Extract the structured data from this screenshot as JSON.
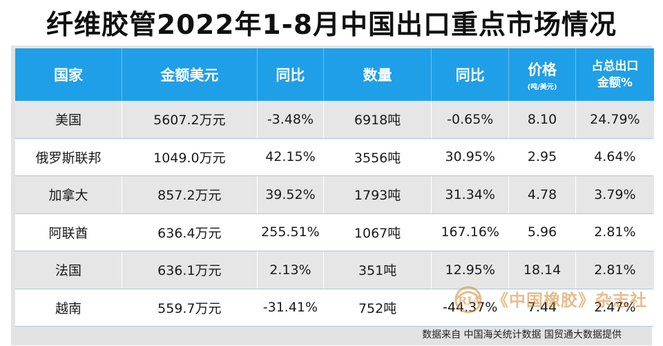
{
  "title": "纤维胶管2022年1-8月中国出口重点市场情况",
  "header": {
    "country": "国家",
    "amount": "金额美元",
    "yoy1": "同比",
    "quantity": "数量",
    "yoy2": "同比",
    "price": "价格",
    "price_unit": "(吨/美元)",
    "share_line1": "占总出口",
    "share_line2": "金额%"
  },
  "rows": [
    {
      "country": "美国",
      "amount": "5607.2万元",
      "yoy1": "-3.48%",
      "quantity": "6918吨",
      "yoy2": "-0.65%",
      "price": "8.10",
      "share": "24.79%"
    },
    {
      "country": "俄罗斯联邦",
      "amount": "1049.0万元",
      "yoy1": "42.15%",
      "quantity": "3556吨",
      "yoy2": "30.95%",
      "price": "2.95",
      "share": "4.64%"
    },
    {
      "country": "加拿大",
      "amount": "857.2万元",
      "yoy1": "39.52%",
      "quantity": "1793吨",
      "yoy2": "31.34%",
      "price": "4.78",
      "share": "3.79%"
    },
    {
      "country": "阿联酋",
      "amount": "636.4万元",
      "yoy1": "255.51%",
      "quantity": "1067吨",
      "yoy2": "167.16%",
      "price": "5.96",
      "share": "2.81%"
    },
    {
      "country": "法国",
      "amount": "636.1万元",
      "yoy1": "2.13%",
      "quantity": "351吨",
      "yoy2": "12.95%",
      "price": "18.14",
      "share": "2.81%"
    },
    {
      "country": "越南",
      "amount": "559.7万元",
      "yoy1": "-31.41%",
      "quantity": "752吨",
      "yoy2": "-44.37%",
      "price": "7.44",
      "share": "2.47%"
    }
  ],
  "source": "数据来自 中国海关统计数据 国贸通大数据提供",
  "watermark": {
    "logo_text": "RIA",
    "text": "《中国橡胶》杂志社"
  },
  "colors": {
    "header_bg": "#1f9fe7",
    "row_alt": "#e6e6e6",
    "watermark": "#d6862d"
  }
}
